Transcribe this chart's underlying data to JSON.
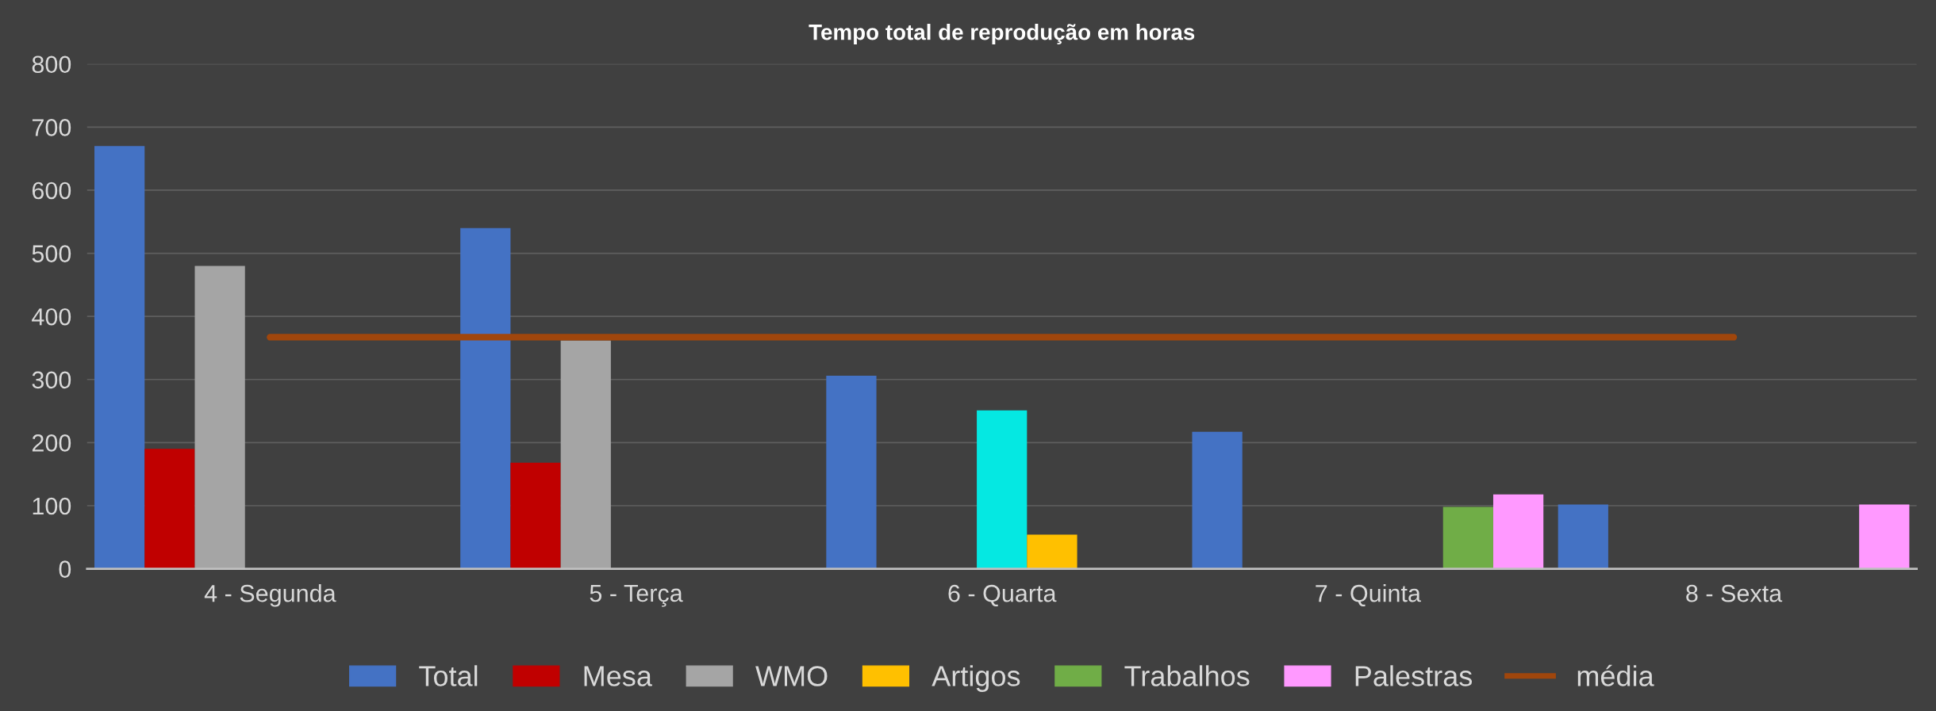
{
  "chart_data": {
    "type": "bar",
    "title": "Tempo total de reprodução em horas",
    "categories": [
      "4 - Segunda",
      "5 - Terça",
      "6 - Quarta",
      "7 - Quinta",
      "8 - Sexta"
    ],
    "series": [
      {
        "name": "Total",
        "color": "#4472c4",
        "values": [
          670,
          540,
          306,
          217,
          102
        ]
      },
      {
        "name": "Mesa",
        "color": "#c00000",
        "values": [
          190,
          168,
          null,
          null,
          null
        ]
      },
      {
        "name": "WMO",
        "color": "#a5a5a5",
        "values": [
          480,
          362,
          null,
          null,
          null
        ]
      },
      {
        "color": "#05e8e2",
        "values": [
          null,
          null,
          251,
          null,
          null
        ]
      },
      {
        "name": "Artigos",
        "color": "#ffc000",
        "values": [
          null,
          null,
          54,
          null,
          null
        ]
      },
      {
        "name": "Trabalhos",
        "color": "#70ad47",
        "values": [
          null,
          null,
          null,
          98,
          null
        ]
      },
      {
        "name": "Palestras",
        "color": "#ff99ff",
        "values": [
          null,
          null,
          null,
          118,
          102
        ]
      },
      {
        "name": "média",
        "type": "line",
        "color": "#a0460c",
        "values": [
          367,
          367,
          367,
          367,
          367
        ]
      }
    ],
    "ylim": [
      0,
      800
    ],
    "yticks": [
      0,
      100,
      200,
      300,
      400,
      500,
      600,
      700,
      800
    ],
    "grid": "y",
    "legend": "bottom"
  }
}
